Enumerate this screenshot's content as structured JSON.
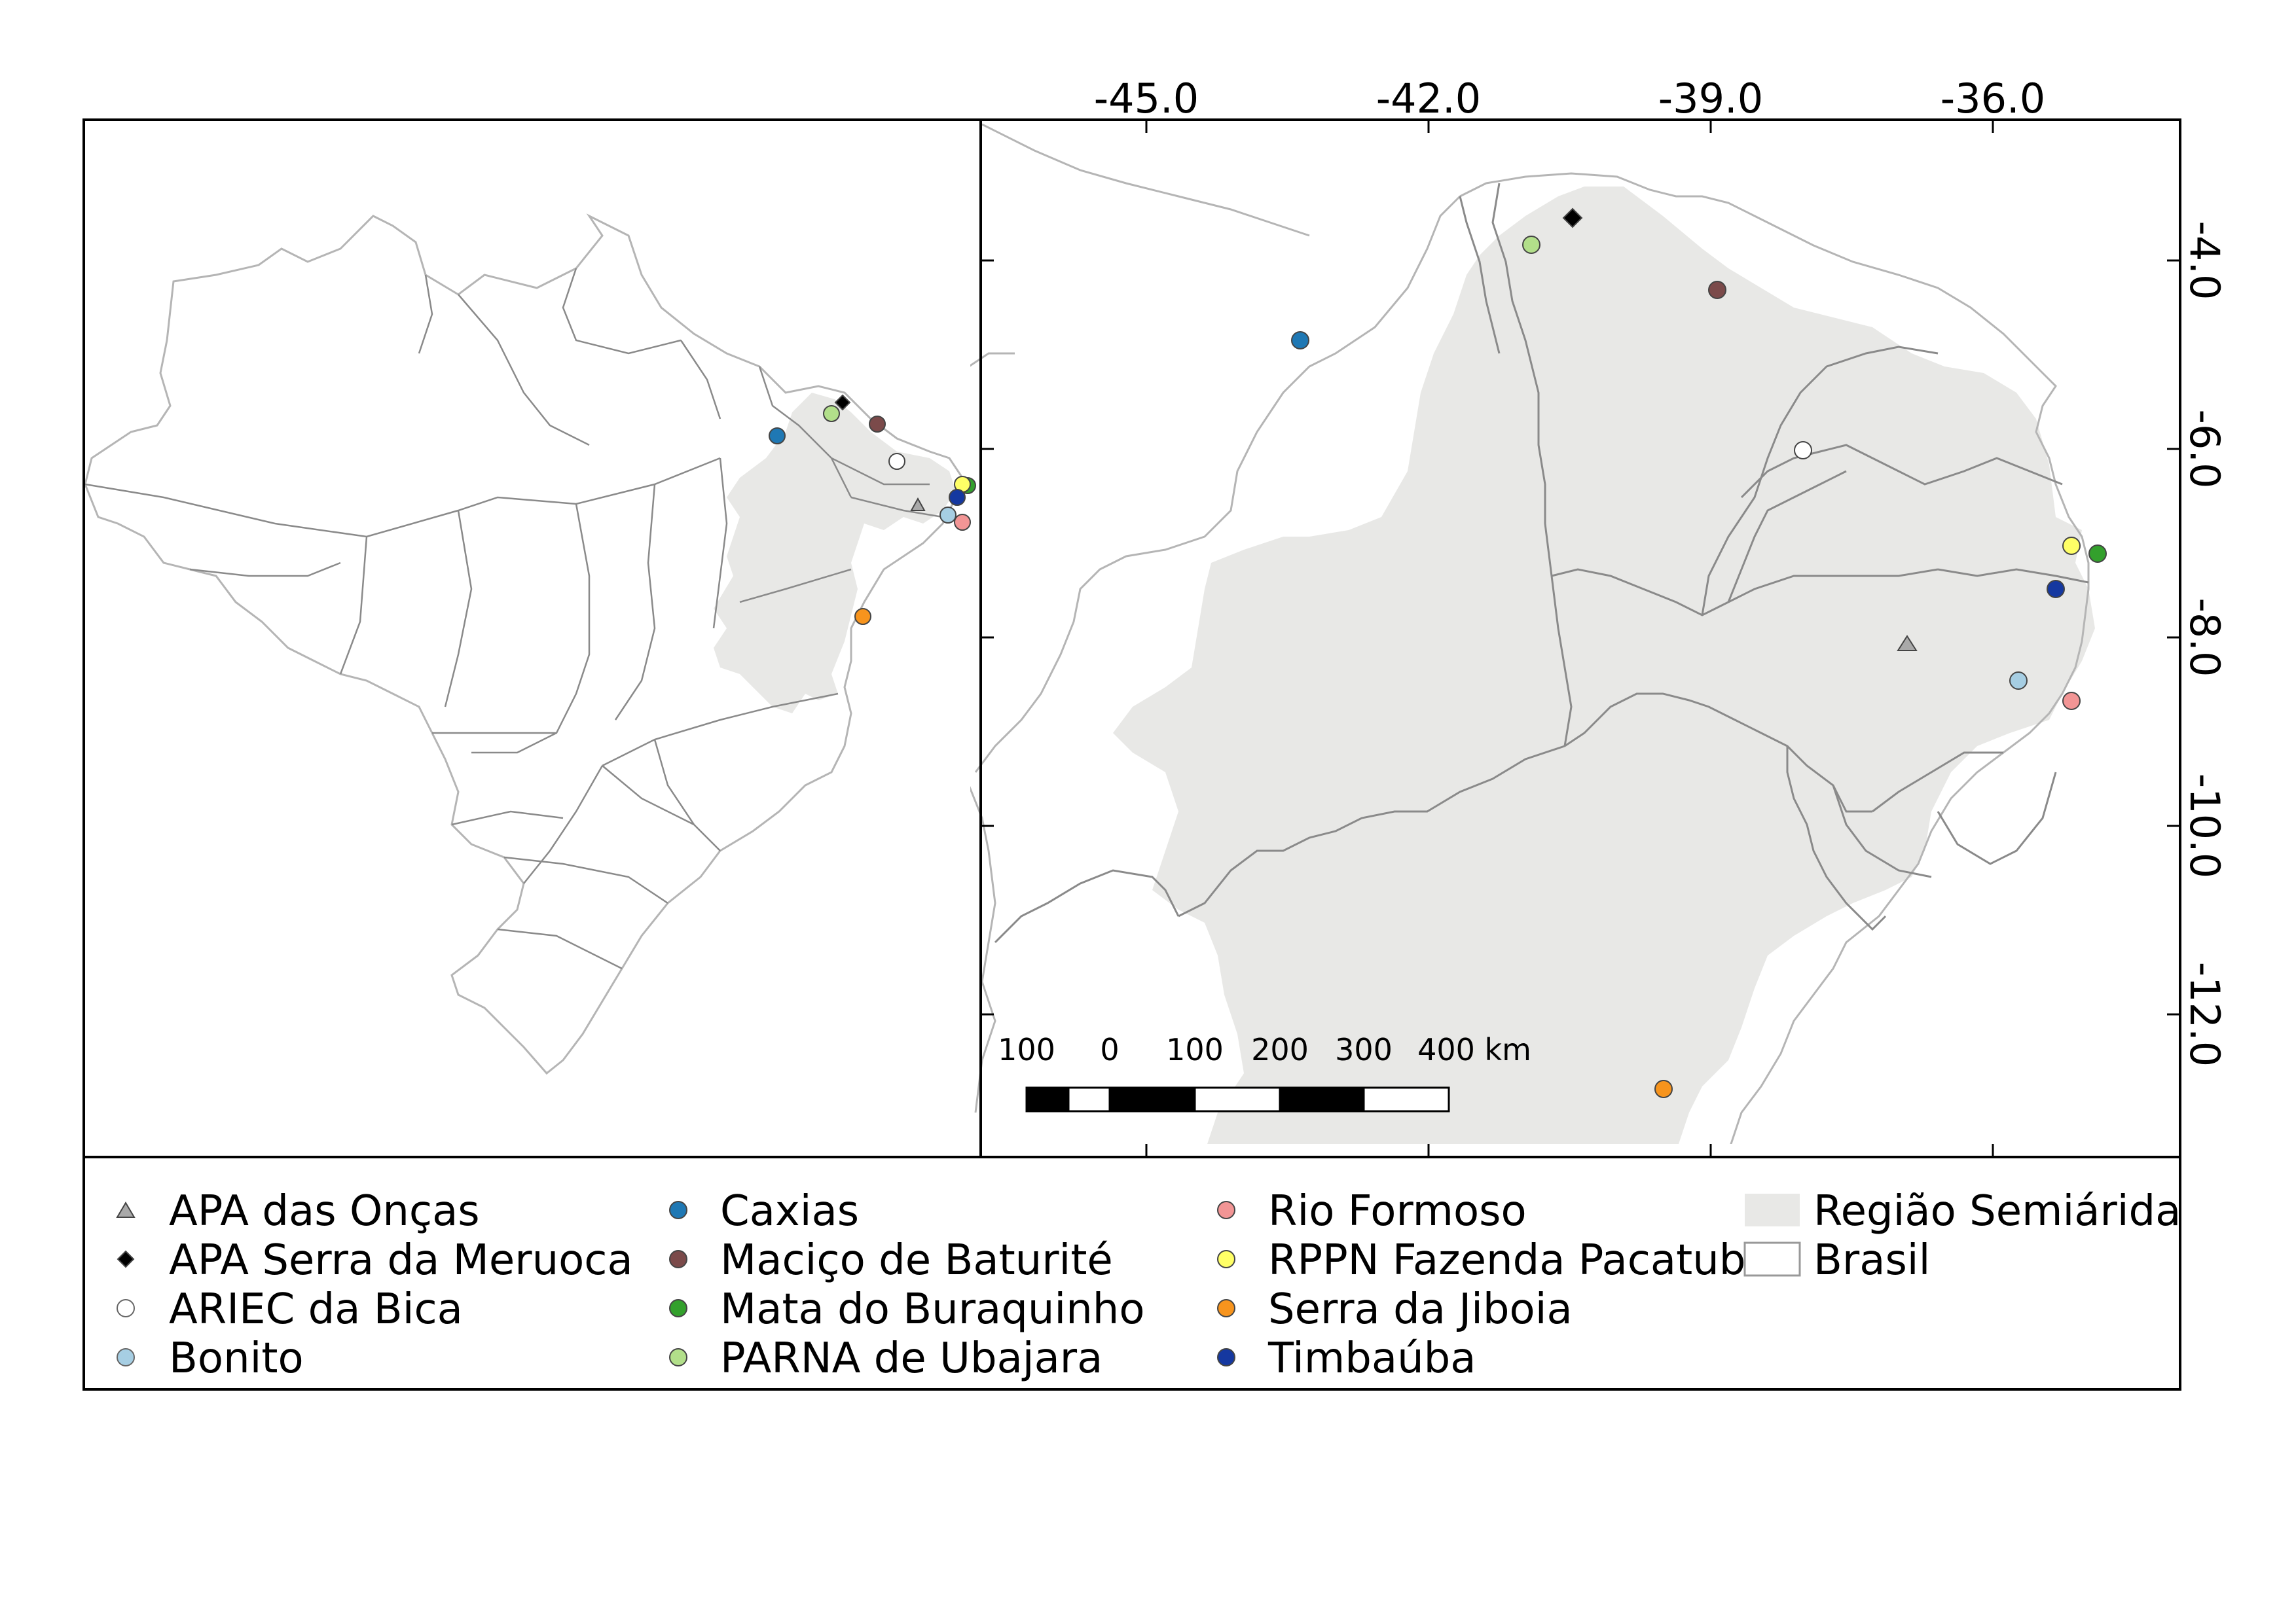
{
  "colors": {
    "semiarid": "#e8e8e6",
    "border_state": "#8a8a8a",
    "border_country": "#b5b5b5",
    "frame": "#000000"
  },
  "map": {
    "x_ticks": [
      "-45.0",
      "-42.0",
      "-39.0",
      "-36.0"
    ],
    "y_ticks": [
      "-4.0",
      "-6.0",
      "-8.0",
      "-10.0",
      "-12.0"
    ]
  },
  "scalebar": {
    "labels": [
      "100",
      "0",
      "100",
      "200",
      "300",
      "400 km"
    ]
  },
  "legend": {
    "items": [
      {
        "label": "APA das Onças",
        "shape": "triangle",
        "color": "#a9a9a9"
      },
      {
        "label": "APA Serra da Meruoca",
        "shape": "diamond",
        "color": "#000000"
      },
      {
        "label": "ARIEC da Bica",
        "shape": "circle",
        "color": "#ffffff"
      },
      {
        "label": "Bonito",
        "shape": "circle",
        "color": "#a6cee3"
      },
      {
        "label": "Caxias",
        "shape": "circle",
        "color": "#1f78b4"
      },
      {
        "label": "Maciço de Baturité",
        "shape": "circle",
        "color": "#7b4a4a"
      },
      {
        "label": "Mata do Buraquinho",
        "shape": "circle",
        "color": "#33a02c"
      },
      {
        "label": "PARNA de Ubajara",
        "shape": "circle",
        "color": "#b2df8a"
      },
      {
        "label": "Rio Formoso",
        "shape": "circle",
        "color": "#f29595"
      },
      {
        "label": "RPPN Fazenda Pacatuba",
        "shape": "circle",
        "color": "#ffff66"
      },
      {
        "label": "Serra da Jiboia",
        "shape": "circle",
        "color": "#f7941d"
      },
      {
        "label": "Timbaúba",
        "shape": "circle",
        "color": "#1538a0"
      },
      {
        "label": "Região Semiárida",
        "shape": "fill",
        "color": "#e8e8e6"
      },
      {
        "label": "Brasil",
        "shape": "outline",
        "color": "#ffffff"
      }
    ]
  }
}
